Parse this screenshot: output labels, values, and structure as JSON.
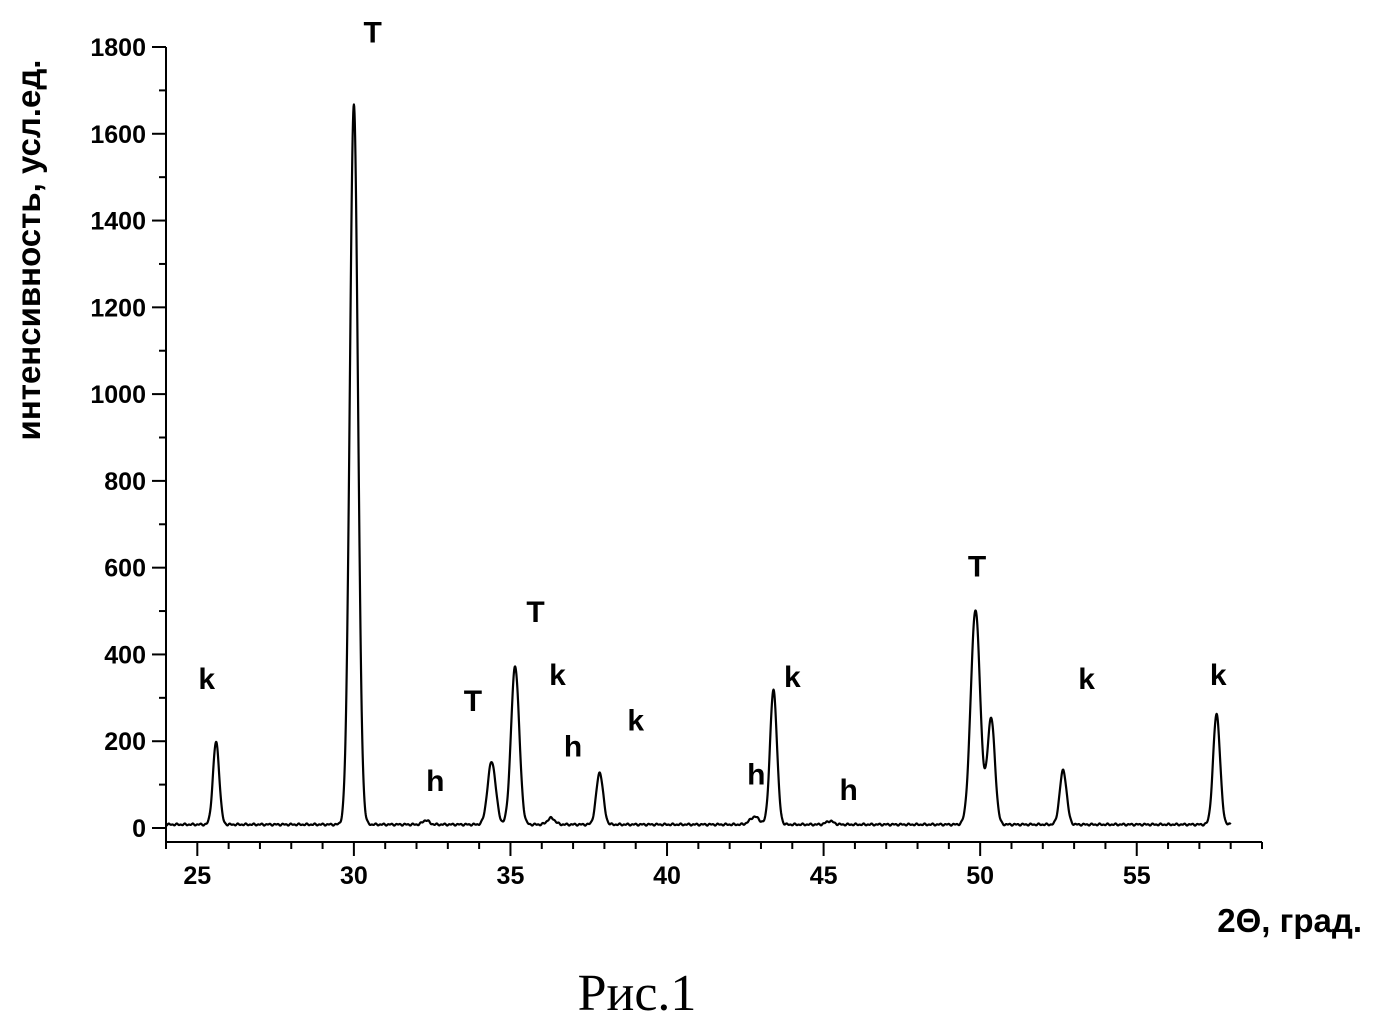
{
  "chart_data": {
    "type": "line",
    "xlabel": "2Θ, град.",
    "ylabel": "интенсивность, усл.ед.",
    "caption": "Рис.1",
    "xlim": [
      24.0,
      59.0
    ],
    "ylim": [
      -20,
      1800
    ],
    "xticks": [
      25,
      30,
      35,
      40,
      45,
      50,
      55
    ],
    "yticks": [
      0,
      200,
      400,
      600,
      800,
      1000,
      1200,
      1400,
      1600,
      1800
    ],
    "grid": false,
    "baseline": 8,
    "x_range": [
      24.0,
      58.0
    ],
    "peaks": [
      {
        "x": 25.6,
        "y": 190,
        "w": 0.1
      },
      {
        "x": 30.0,
        "y": 1660,
        "w": 0.13
      },
      {
        "x": 32.3,
        "y": 10,
        "w": 0.1
      },
      {
        "x": 34.4,
        "y": 145,
        "w": 0.13
      },
      {
        "x": 35.15,
        "y": 365,
        "w": 0.13
      },
      {
        "x": 36.3,
        "y": 15,
        "w": 0.12
      },
      {
        "x": 37.85,
        "y": 120,
        "w": 0.11
      },
      {
        "x": 42.8,
        "y": 18,
        "w": 0.15
      },
      {
        "x": 43.4,
        "y": 310,
        "w": 0.11
      },
      {
        "x": 45.2,
        "y": 8,
        "w": 0.12
      },
      {
        "x": 49.85,
        "y": 495,
        "w": 0.15
      },
      {
        "x": 50.35,
        "y": 245,
        "w": 0.12
      },
      {
        "x": 52.65,
        "y": 125,
        "w": 0.11
      },
      {
        "x": 57.55,
        "y": 255,
        "w": 0.11
      }
    ],
    "annotations": [
      {
        "text": "T",
        "x": 30.6,
        "y": 1810
      },
      {
        "text": "k",
        "x": 25.3,
        "y": 320
      },
      {
        "text": "h",
        "x": 32.6,
        "y": 85
      },
      {
        "text": "T",
        "x": 33.8,
        "y": 270
      },
      {
        "text": "T",
        "x": 35.8,
        "y": 475
      },
      {
        "text": "k",
        "x": 36.5,
        "y": 330
      },
      {
        "text": "h",
        "x": 37.0,
        "y": 165
      },
      {
        "text": "k",
        "x": 39.0,
        "y": 225
      },
      {
        "text": "h",
        "x": 42.85,
        "y": 100
      },
      {
        "text": "k",
        "x": 44.0,
        "y": 325
      },
      {
        "text": "h",
        "x": 45.8,
        "y": 65
      },
      {
        "text": "T",
        "x": 49.9,
        "y": 580
      },
      {
        "text": "k",
        "x": 53.4,
        "y": 320
      },
      {
        "text": "k",
        "x": 57.6,
        "y": 330
      }
    ]
  }
}
